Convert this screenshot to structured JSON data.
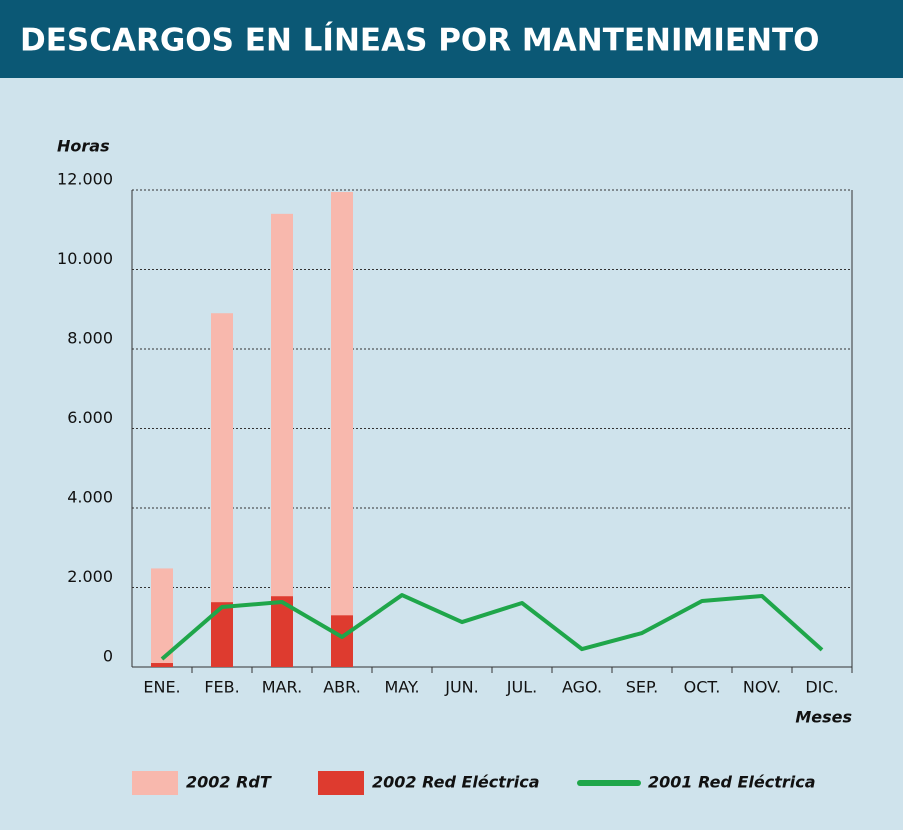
{
  "chart_data": {
    "type": "bar",
    "title": "DESCARGOS EN LÍNEAS POR MANTENIMIENTO",
    "y_label": "Horas",
    "x_label": "Meses",
    "categories": [
      "ENE.",
      "FEB.",
      "MAR.",
      "ABR.",
      "MAY.",
      "JUN.",
      "JUL.",
      "AGO.",
      "SEP.",
      "OCT.",
      "NOV.",
      "DIC."
    ],
    "series": [
      {
        "name": "2002 RdT",
        "color": "#f8b8ad",
        "kind": "bar",
        "values": [
          2480,
          8900,
          11400,
          11950,
          null,
          null,
          null,
          null,
          null,
          null,
          null,
          null
        ]
      },
      {
        "name": "2002 Red Eléctrica",
        "color": "#de3b2f",
        "kind": "bar",
        "values": [
          100,
          1630,
          1780,
          1300,
          null,
          null,
          null,
          null,
          null,
          null,
          null,
          null
        ]
      },
      {
        "name": "2001 Red Eléctrica",
        "color": "#1fa64a",
        "kind": "line",
        "values": [
          200,
          1510,
          1635,
          755,
          1810,
          1130,
          1610,
          450,
          855,
          1660,
          1785,
          430
        ]
      }
    ],
    "ylim": [
      0,
      12000
    ],
    "yticks": [
      0,
      {
        "value": 2000,
        "label": "2.000"
      },
      {
        "value": 4000,
        "label": "4.000"
      },
      {
        "value": 6000,
        "label": "6.000"
      },
      {
        "value": 8000,
        "label": "8.000"
      },
      {
        "value": 10000,
        "label": "10.000"
      },
      {
        "value": 12000,
        "label": "12.000"
      }
    ],
    "grid": true
  }
}
